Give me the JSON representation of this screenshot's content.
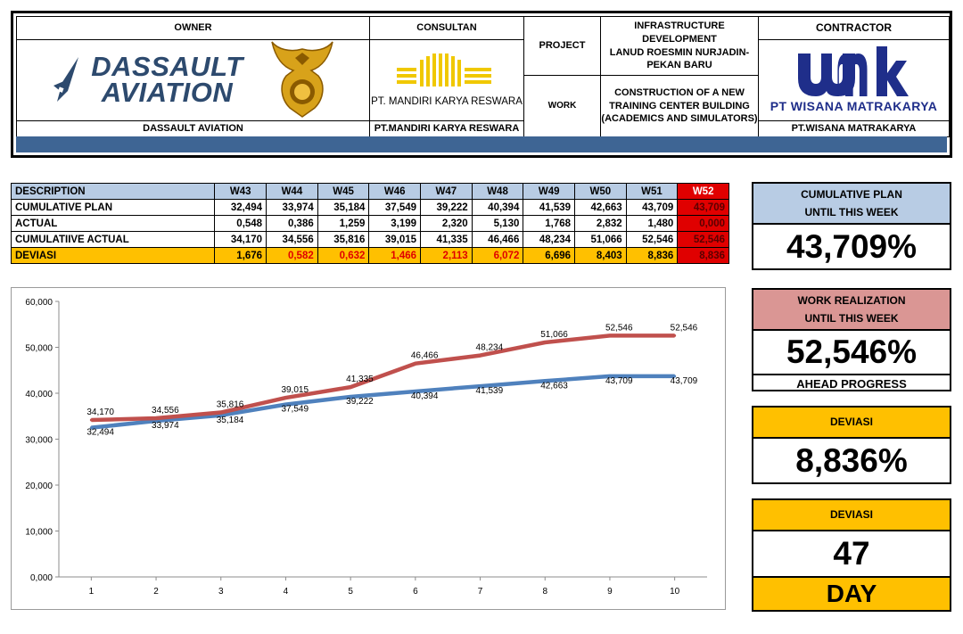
{
  "header": {
    "owner_label": "OWNER",
    "owner_name": "DASSAULT AVIATION",
    "owner_logo_line1": "DASSAULT",
    "owner_logo_line2": "AVIATION",
    "consultant_label": "CONSULTAN",
    "consultant_logo_text": "PT. MANDIRI KARYA RESWARA",
    "consultant_name": "PT.MANDIRI KARYA RESWARA",
    "project_label": "PROJECT",
    "project_line1": "INFRASTRUCTURE DEVELOPMENT",
    "project_line2": "LANUD ROESMIN NURJADIN-",
    "project_line3": "PEKAN BARU",
    "work_label": "WORK",
    "work_line1": "CONSTRUCTION OF A NEW",
    "work_line2": "TRAINING CENTER BUILDING",
    "work_line3": "(ACADEMICS AND SIMULATORS)",
    "contractor_label": "CONTRACTOR",
    "contractor_logo_text": "PT WISANA MATRAKARYA",
    "contractor_name": "PT.WISANA MATRAKARYA",
    "colors": {
      "band": "#3e6594",
      "logo_blue": "#1f2e8a",
      "consultant_gold": "#f0c800"
    }
  },
  "table": {
    "desc_header": "DESCRIPTION",
    "weeks": [
      "W43",
      "W44",
      "W45",
      "W46",
      "W47",
      "W48",
      "W49",
      "W50",
      "W51",
      "W52"
    ],
    "rows": [
      {
        "label": "CUMULATIVE PLAN",
        "values": [
          "32,494",
          "33,974",
          "35,184",
          "37,549",
          "39,222",
          "40,394",
          "41,539",
          "42,663",
          "43,709",
          "43,709"
        ]
      },
      {
        "label": "ACTUAL",
        "values": [
          "0,548",
          "0,386",
          "1,259",
          "3,199",
          "2,320",
          "5,130",
          "1,768",
          "2,832",
          "1,480",
          "0,000"
        ]
      },
      {
        "label": "CUMULATIIVE ACTUAL",
        "values": [
          "34,170",
          "34,556",
          "35,816",
          "39,015",
          "41,335",
          "46,466",
          "48,234",
          "51,066",
          "52,546",
          "52,546"
        ]
      },
      {
        "label": "DEVIASI",
        "values": [
          "1,676",
          "0,582",
          "0,632",
          "1,466",
          "2,113",
          "6,072",
          "6,696",
          "8,403",
          "8,836",
          "8,836"
        ]
      }
    ],
    "colors": {
      "header_bg": "#b8cce4",
      "deviasi_bg": "#ffc000",
      "highlight": "#e00000"
    }
  },
  "chart_data": {
    "type": "line",
    "x": [
      1,
      2,
      3,
      4,
      5,
      6,
      7,
      8,
      9,
      10
    ],
    "xlabels": [
      "1",
      "2",
      "3",
      "4",
      "5",
      "6",
      "7",
      "8",
      "9",
      "10"
    ],
    "ylim": [
      0,
      60
    ],
    "yticks": [
      0,
      10,
      20,
      30,
      40,
      50,
      60
    ],
    "ytick_labels": [
      "0,000",
      "10,000",
      "20,000",
      "30,000",
      "40,000",
      "50,000",
      "60,000"
    ],
    "grid": false,
    "legend": "none",
    "series": [
      {
        "color": "#4f81bd",
        "values": [
          32.494,
          33.974,
          35.184,
          37.549,
          39.222,
          40.394,
          41.539,
          42.663,
          43.709,
          43.709
        ],
        "labels": [
          "32,494",
          "33,974",
          "35,184",
          "37,549",
          "39,222",
          "40,394",
          "41,539",
          "42,663",
          "43,709",
          "43,709"
        ]
      },
      {
        "color": "#c0504d",
        "values": [
          34.17,
          34.556,
          35.816,
          39.015,
          41.335,
          46.466,
          48.234,
          51.066,
          52.546,
          52.546
        ],
        "labels": [
          "34,170",
          "34,556",
          "35,816",
          "39,015",
          "41,335",
          "46,466",
          "48,234",
          "51,066",
          "52,546",
          "52,546"
        ]
      }
    ]
  },
  "panels": {
    "plan_title1": "CUMULATIVE PLAN",
    "plan_title2": "UNTIL THIS WEEK",
    "plan_value": "43,709%",
    "real_title1": "WORK REALIZATION",
    "real_title2": "UNTIL THIS WEEK",
    "real_value": "52,546%",
    "real_note": "AHEAD PROGRESS",
    "dev_title": "DEVIASI",
    "dev_value": "8,836%",
    "day_title": "DEVIASI",
    "day_value": "47",
    "day_unit": "DAY",
    "colors": {
      "plan_bg": "#b8cce4",
      "real_bg": "#da9694",
      "gold": "#ffc000"
    }
  }
}
